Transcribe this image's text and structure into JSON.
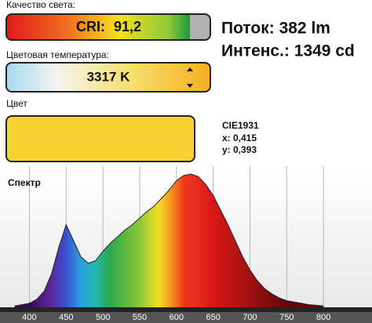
{
  "header": {
    "cri_caption": "Качество света:",
    "cri_label": "CRI:",
    "cri_value": "91,2",
    "flux": "Поток: 382 lm",
    "intensity": "Интенс.: 1349 cd",
    "cct_caption": "Цветовая температура:",
    "cct_value": "3317 K",
    "color_caption": "Цвет",
    "color_swatch": "#f8d234",
    "cie_title": "CIE1931",
    "cie_x": "x: 0,415",
    "cie_y": "y: 0,393"
  },
  "chart_data": {
    "type": "area",
    "title": "Спектр",
    "x": [
      380,
      390,
      400,
      410,
      420,
      430,
      440,
      450,
      460,
      470,
      480,
      490,
      500,
      510,
      520,
      530,
      540,
      550,
      560,
      570,
      580,
      590,
      600,
      610,
      620,
      630,
      640,
      650,
      660,
      670,
      680,
      690,
      700,
      710,
      720,
      730,
      740,
      750,
      760,
      770,
      780,
      800
    ],
    "values": [
      1,
      2,
      3,
      6,
      12,
      25,
      45,
      62,
      50,
      38,
      33,
      35,
      42,
      48,
      53,
      58,
      62,
      67,
      72,
      76,
      82,
      88,
      95,
      99,
      100,
      98,
      92,
      84,
      73,
      62,
      50,
      38,
      28,
      20,
      14,
      10,
      7,
      5,
      4,
      3,
      2,
      1
    ],
    "xlim": [
      360,
      866
    ],
    "xticks": [
      400,
      450,
      500,
      550,
      600,
      650,
      700,
      750,
      800
    ],
    "ylim": [
      0,
      100
    ],
    "grid": true
  }
}
